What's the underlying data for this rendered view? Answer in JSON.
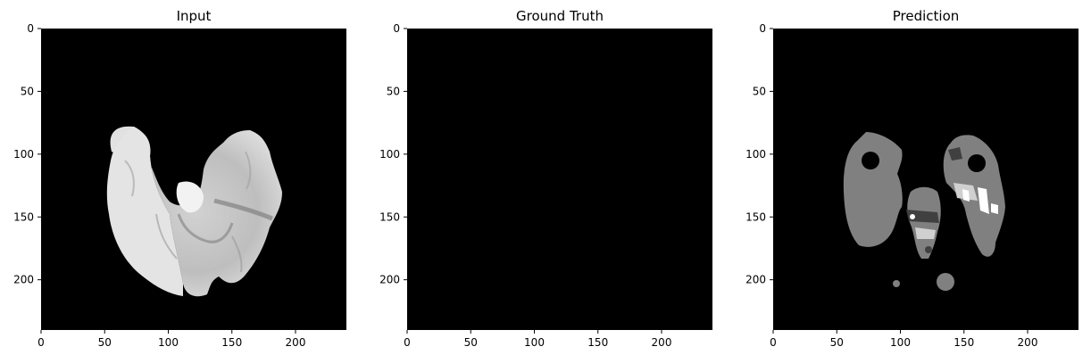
{
  "panels": [
    {
      "title": "Input",
      "kind": "mri-slice",
      "x_ticks": [
        "0",
        "50",
        "100",
        "150",
        "200"
      ],
      "y_ticks": [
        "0",
        "50",
        "100",
        "150",
        "200"
      ]
    },
    {
      "title": "Ground Truth",
      "kind": "empty-mask",
      "x_ticks": [
        "0",
        "50",
        "100",
        "150",
        "200"
      ],
      "y_ticks": [
        "0",
        "50",
        "100",
        "150",
        "200"
      ]
    },
    {
      "title": "Prediction",
      "kind": "segmentation",
      "x_ticks": [
        "0",
        "50",
        "100",
        "150",
        "200"
      ],
      "y_ticks": [
        "0",
        "50",
        "100",
        "150",
        "200"
      ]
    }
  ],
  "colors": {
    "background": "#000000",
    "segmentation_gray": "#808080",
    "segmentation_dark": "#404040",
    "segmentation_light": "#d0d0d0",
    "segmentation_white": "#ffffff"
  }
}
